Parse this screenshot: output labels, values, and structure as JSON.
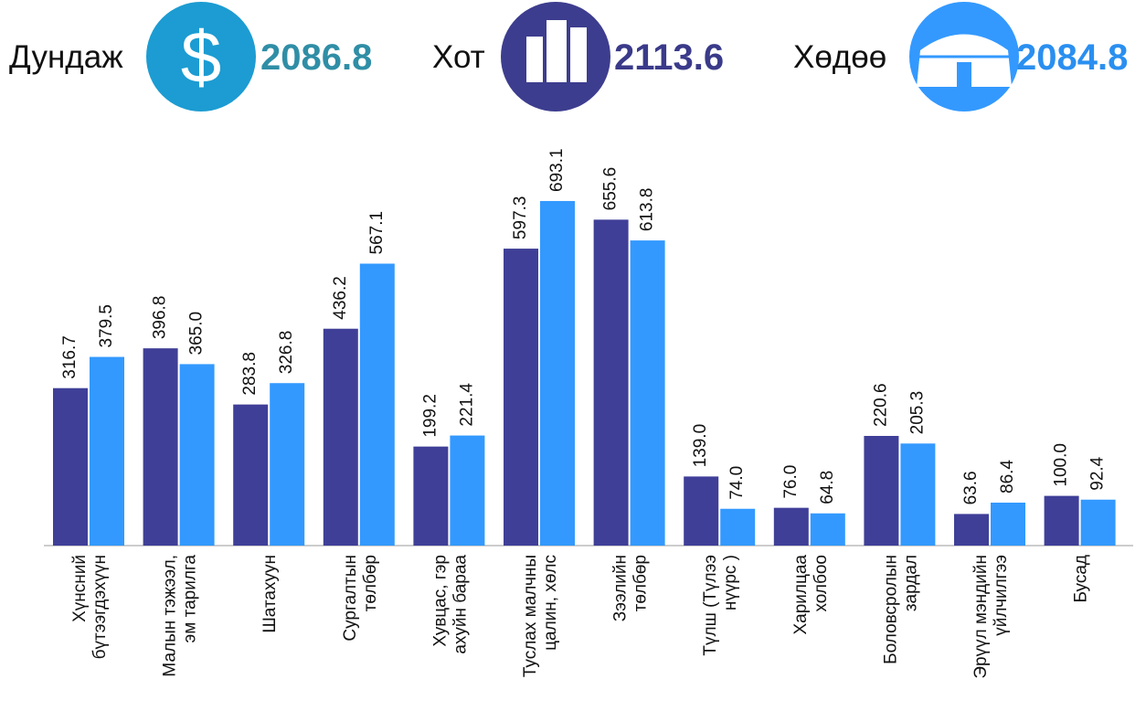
{
  "header": {
    "stats": [
      {
        "label": "Дундаж",
        "value": "2086.8",
        "color": "#1c9cd2",
        "text_color": "#2f8ea6"
      },
      {
        "label": "Хот",
        "value": "2113.6",
        "color": "#3d3d8f",
        "text_color": "#3a3a8a"
      },
      {
        "label": "Хөдөө",
        "value": "2084.8",
        "color": "#3399ff",
        "text_color": "#2a8ff0"
      }
    ]
  },
  "chart_data": {
    "type": "bar",
    "categories": [
      "Хүнсний\nбүтээгдэхүүн",
      "Малын тэжээл,\nэм тарилга",
      "Шатахуун",
      "Сургалтын\nтөлбөр",
      "Хувцас, гэр\nахуйн бараа",
      "Туслах малчны\nцалин, хөлс",
      "Зээлийн\nтөлбөр",
      "Түлш (Түлээ\nнүүрс )",
      "Харилцаа\nхолбоо",
      "Боловсролын\nзардал",
      "Эрүүл мэндийн\nүйлчилгээ",
      "Бусад"
    ],
    "series": [
      {
        "color": "#3f3f98",
        "values": [
          316.7,
          396.8,
          283.8,
          436.2,
          199.2,
          597.3,
          655.6,
          139.0,
          76.0,
          220.6,
          63.6,
          100.0
        ],
        "value_labels": [
          "316.7",
          "396.8",
          "283.8",
          "436.2",
          "199.2",
          "597.3",
          "655.6",
          "139.0",
          "76.0",
          "220.6",
          "63.6",
          "100.0"
        ]
      },
      {
        "color": "#3399ff",
        "values": [
          379.5,
          365.0,
          326.8,
          567.1,
          221.4,
          693.1,
          613.8,
          74.0,
          64.8,
          205.3,
          86.4,
          92.4
        ],
        "value_labels": [
          "379.5",
          "365.0",
          "326.8",
          "567.1",
          "221.4",
          "693.1",
          "613.8",
          "74.0",
          "64.8",
          "205.3",
          "86.4",
          "92.4"
        ]
      }
    ]
  }
}
